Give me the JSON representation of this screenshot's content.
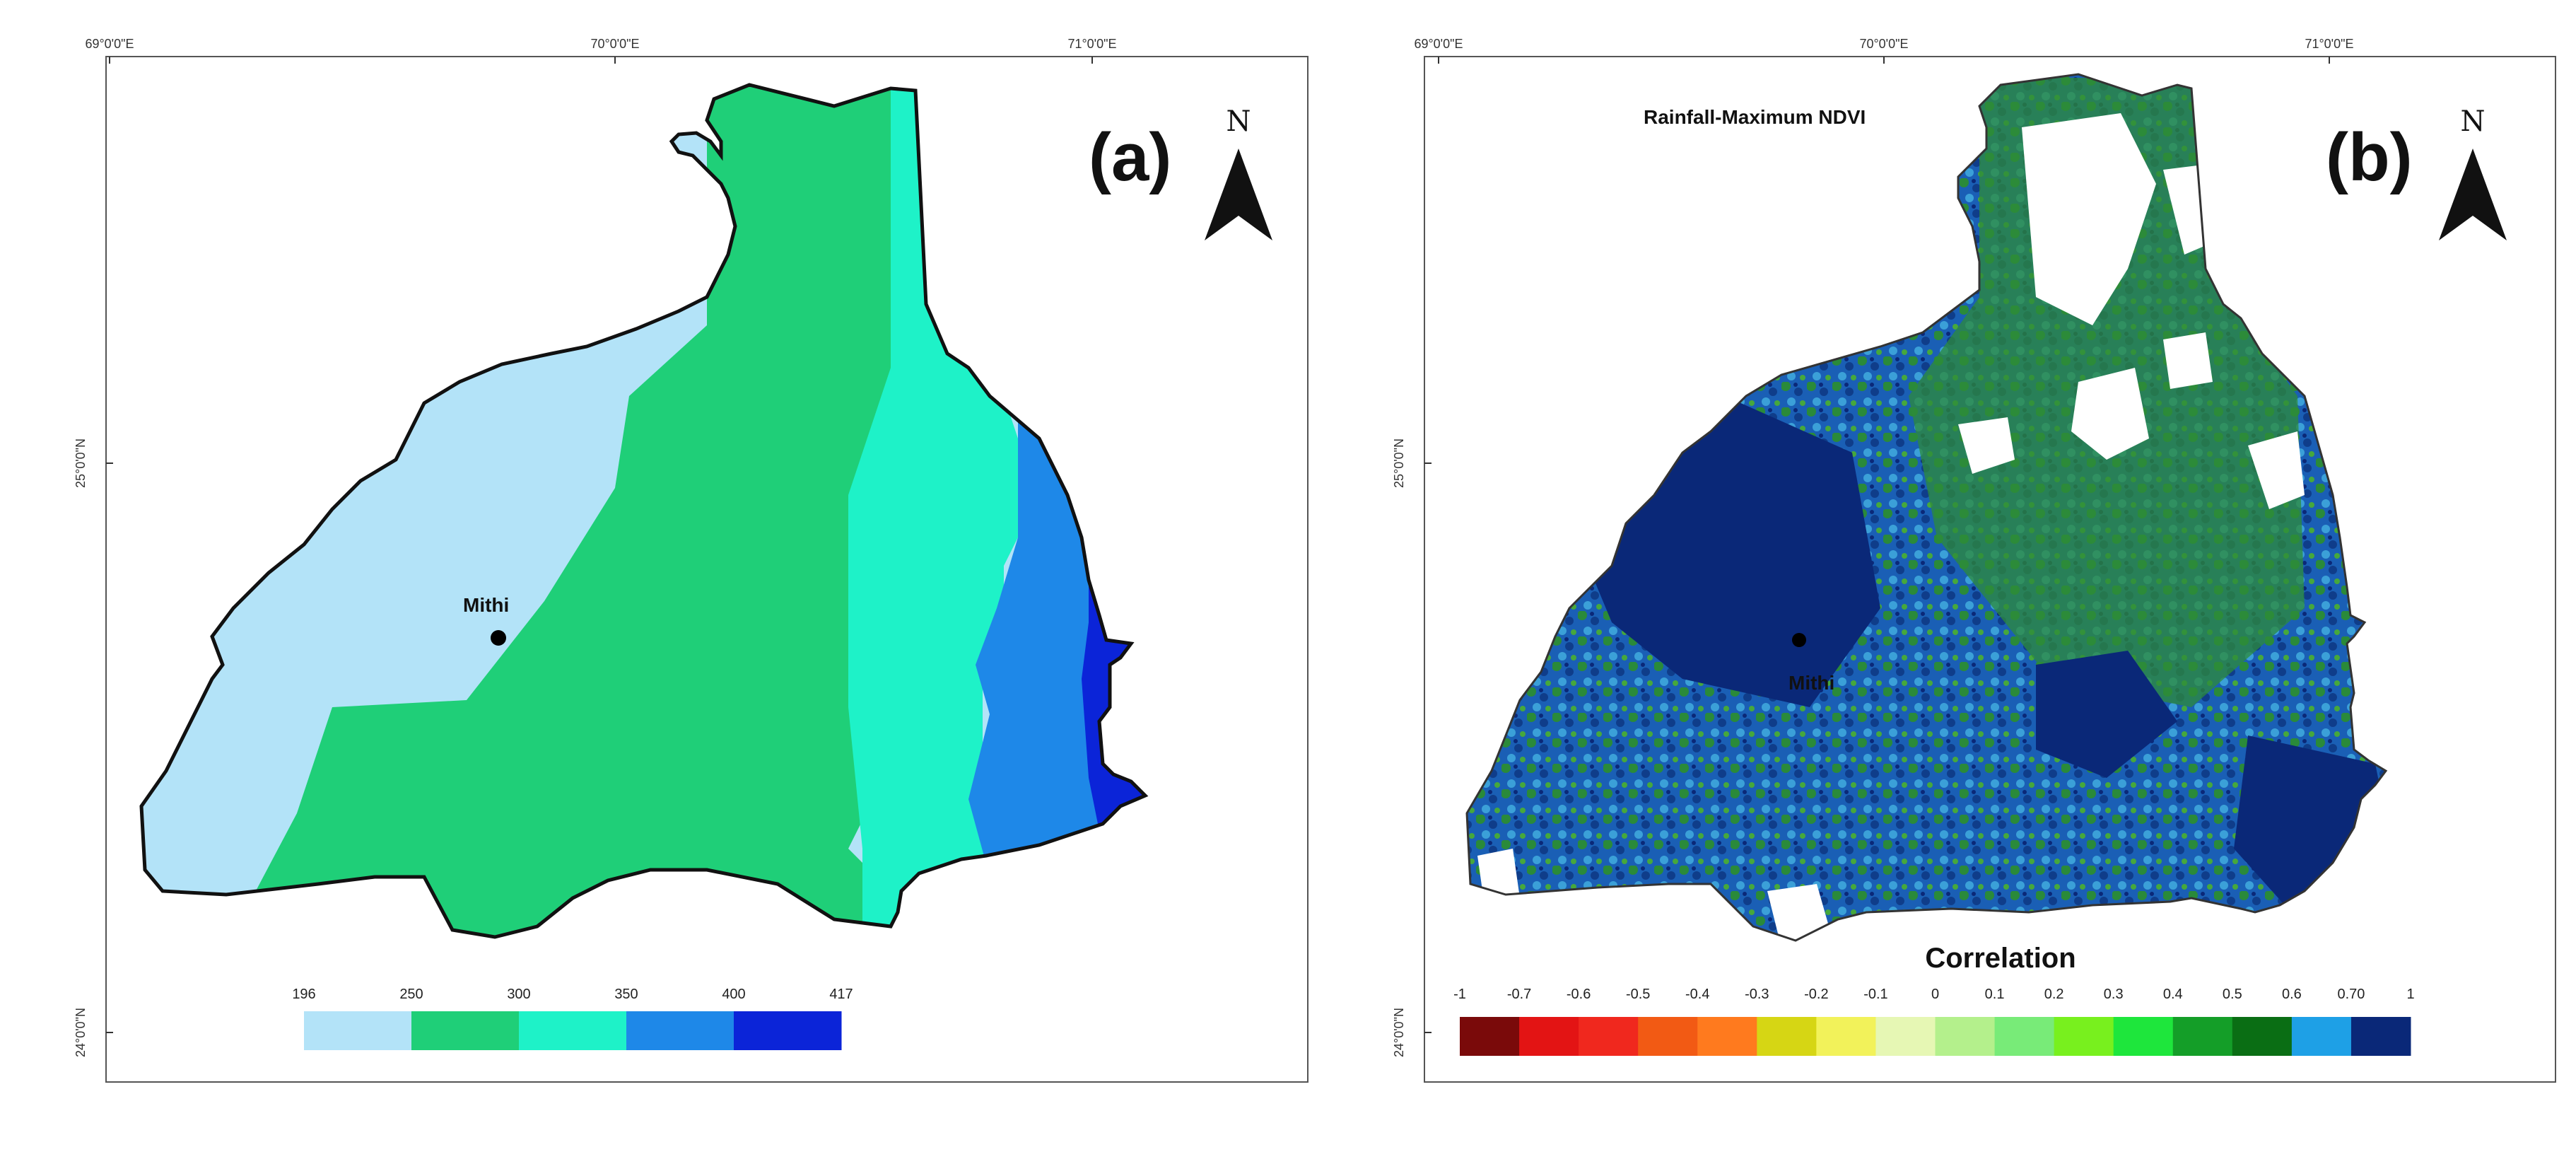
{
  "panels": {
    "a": {
      "label": "(a)",
      "north_label": "N",
      "x_ticks": [
        "69°0'0\"E",
        "70°0'0\"E",
        "71°0'0\"E"
      ],
      "y_ticks": [
        "25°0'0\"N",
        "24°0'0\"N"
      ],
      "city": "Mithi",
      "legend": {
        "tick_labels": [
          "196",
          "250",
          "300",
          "350",
          "400",
          "417"
        ],
        "colors": [
          "#b3e3f8",
          "#1fcf78",
          "#1ef2c8",
          "#1e88e8",
          "#0b24d8"
        ]
      }
    },
    "b": {
      "label": "(b)",
      "north_label": "N",
      "title": "Rainfall-Maximum NDVI",
      "x_ticks": [
        "69°0'0\"E",
        "70°0'0\"E",
        "71°0'0\"E"
      ],
      "y_ticks": [
        "25°0'0\"N",
        "24°0'0\"N"
      ],
      "city": "Mithi",
      "legend": {
        "title": "Correlation",
        "tick_labels": [
          "-1",
          "-0.7",
          "-0.6",
          "-0.5",
          "-0.4",
          "-0.3",
          "-0.2",
          "-0.1",
          "0",
          "0.1",
          "0.2",
          "0.3",
          "0.4",
          "0.5",
          "0.6",
          "0.70",
          "1"
        ],
        "colors": [
          "#7a0a0a",
          "#e31414",
          "#f0281e",
          "#f25a14",
          "#ff7a1e",
          "#d6d614",
          "#f2f25a",
          "#e6f7b4",
          "#b4f08c",
          "#78eb78",
          "#78f01e",
          "#1ee63c",
          "#149e28",
          "#0a6e14",
          "#1ea0e6",
          "#0a2878"
        ]
      }
    }
  }
}
